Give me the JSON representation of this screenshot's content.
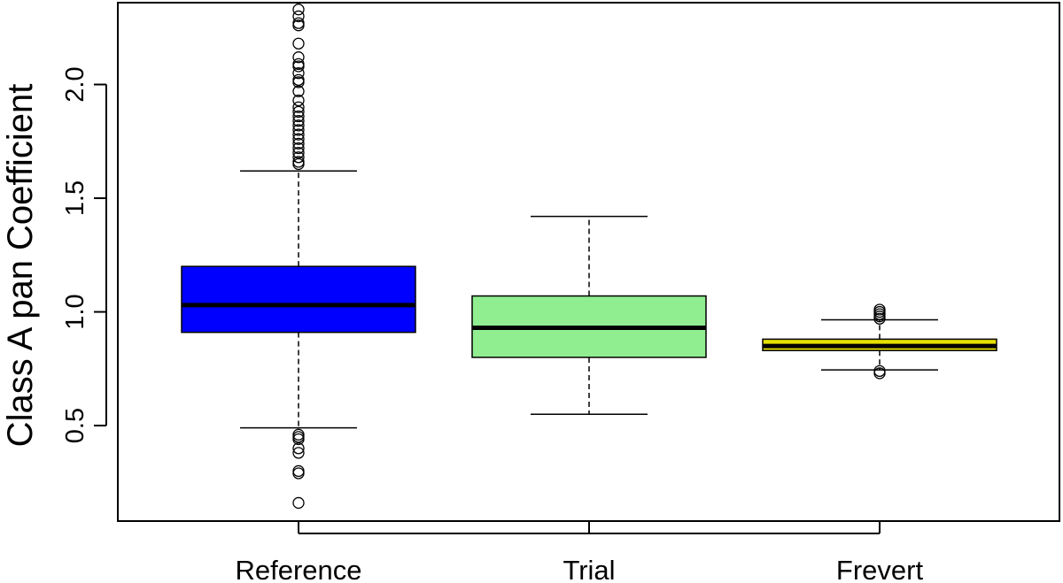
{
  "chart_data": {
    "type": "box",
    "ylabel": "Class A pan Coefficient",
    "xlabel": "",
    "title": "",
    "ylim": [
      0.08,
      2.36
    ],
    "yticks": [
      0.5,
      1.0,
      1.5,
      2.0
    ],
    "ytick_labels": [
      "0.5",
      "1.0",
      "1.5",
      "2.0"
    ],
    "grid": false,
    "categories": [
      "Reference",
      "Trial",
      "Frevert"
    ],
    "series": [
      {
        "category": "Reference",
        "color": "#0000ff",
        "whisker_low": 0.49,
        "q1": 0.91,
        "median": 1.03,
        "q3": 1.2,
        "whisker_high": 1.62,
        "outliers": [
          2.33,
          2.3,
          2.27,
          2.26,
          2.18,
          2.12,
          2.09,
          2.08,
          2.05,
          2.02,
          2.01,
          1.97,
          1.93,
          1.9,
          1.88,
          1.86,
          1.84,
          1.82,
          1.8,
          1.78,
          1.76,
          1.74,
          1.72,
          1.7,
          1.68,
          1.66,
          1.65,
          0.46,
          0.45,
          0.44,
          0.4,
          0.38,
          0.3,
          0.29,
          0.16
        ]
      },
      {
        "category": "Trial",
        "color": "#90ee90",
        "whisker_low": 0.55,
        "q1": 0.8,
        "median": 0.93,
        "q3": 1.07,
        "whisker_high": 1.42,
        "outliers": []
      },
      {
        "category": "Frevert",
        "color": "#e5e000",
        "whisker_low": 0.745,
        "q1": 0.83,
        "median": 0.85,
        "q3": 0.88,
        "whisker_high": 0.965,
        "outliers": [
          1.01,
          1.0,
          0.99,
          0.98,
          0.97,
          0.74,
          0.73
        ]
      }
    ]
  }
}
